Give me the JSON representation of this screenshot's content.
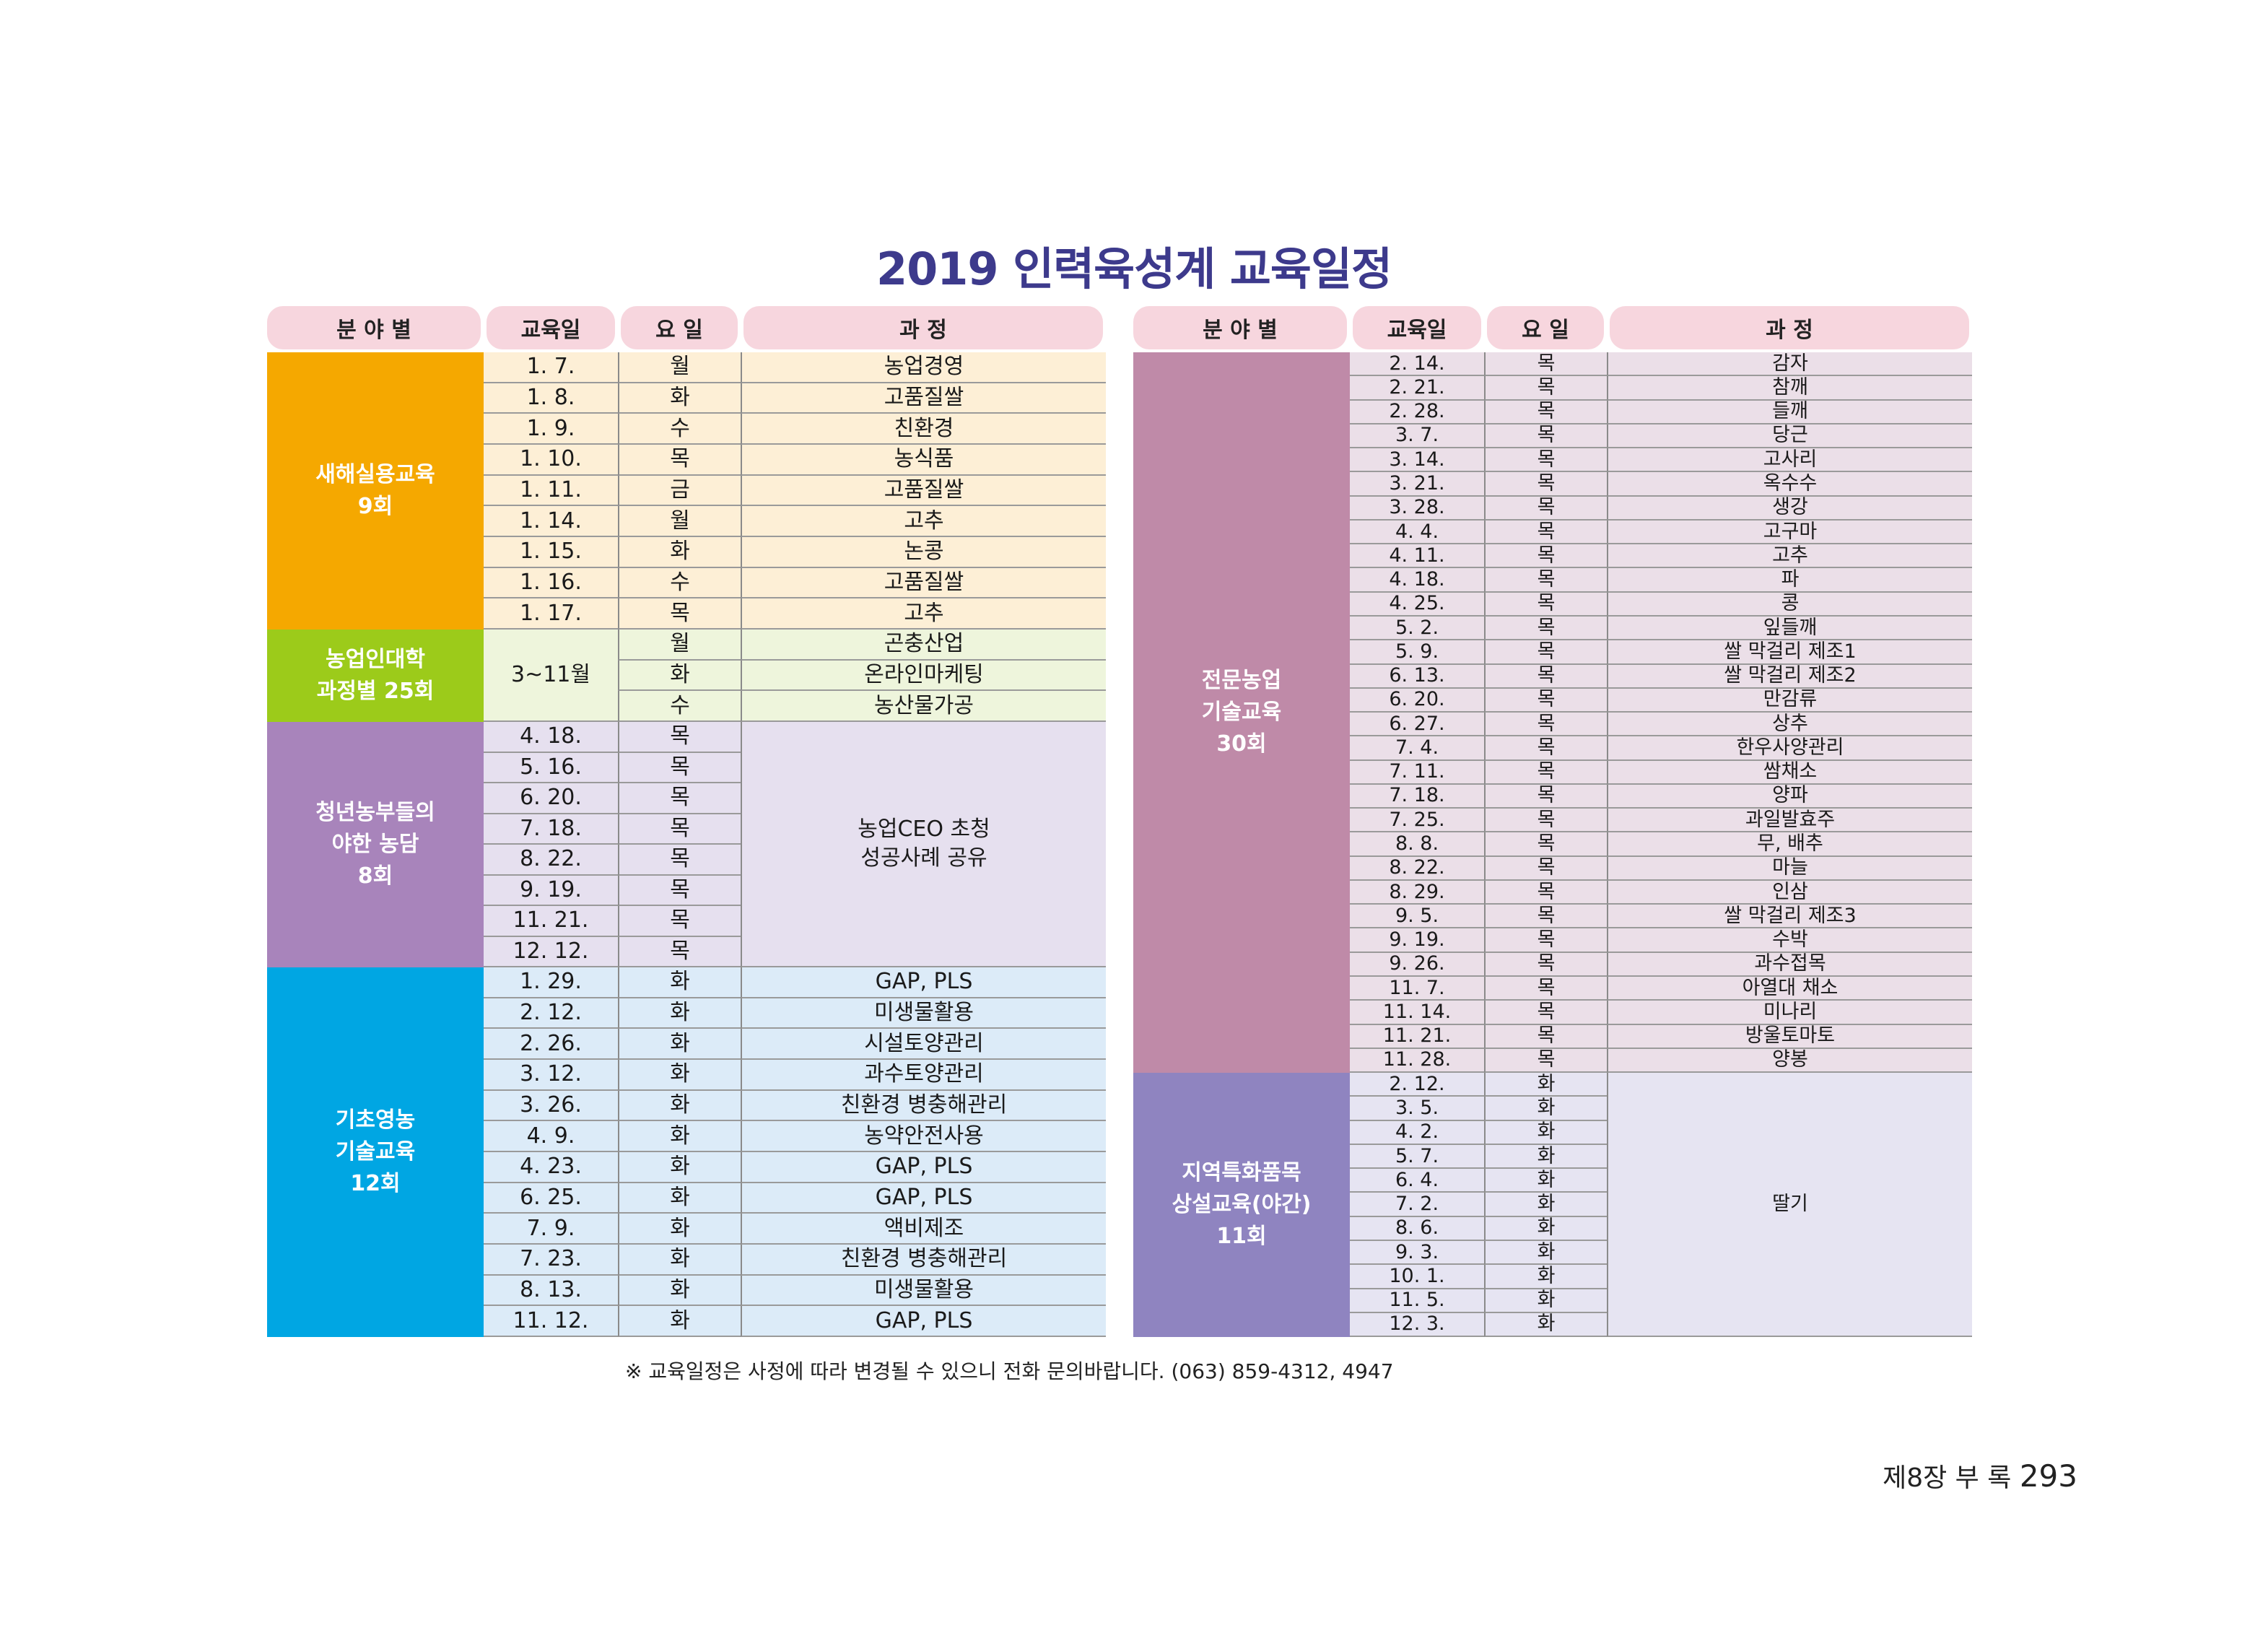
{
  "title": "2019 인력육성계 교육일정",
  "headers": [
    "분 야 별",
    "교육일",
    "요 일",
    "과      정"
  ],
  "colors": {
    "title": "#3d3a8c",
    "header_bg": "#f7d6de",
    "new_year": "#f5a800",
    "new_year_bg": "#fdefd6",
    "farmer_univ": "#9ccb1a",
    "farmer_univ_bg": "#eef5dc",
    "young_farmer": "#a884bb",
    "young_farmer_bg": "#e6e0ef",
    "basic": "#00a6e3",
    "basic_bg": "#dcebf8",
    "specialized": "#bf8aa8",
    "specialized_bg": "#ebdfe8",
    "regional": "#8f84c0",
    "regional_bg": "#e6e4f2"
  },
  "left_table": {
    "groups": [
      {
        "label": "새해실용교육\n9회",
        "rows": [
          {
            "date": "1. 7.",
            "day": "월",
            "course": "농업경영"
          },
          {
            "date": "1. 8.",
            "day": "화",
            "course": "고품질쌀"
          },
          {
            "date": "1. 9.",
            "day": "수",
            "course": "친환경"
          },
          {
            "date": "1. 10.",
            "day": "목",
            "course": "농식품"
          },
          {
            "date": "1. 11.",
            "day": "금",
            "course": "고품질쌀"
          },
          {
            "date": "1. 14.",
            "day": "월",
            "course": "고추"
          },
          {
            "date": "1. 15.",
            "day": "화",
            "course": "논콩"
          },
          {
            "date": "1. 16.",
            "day": "수",
            "course": "고품질쌀"
          },
          {
            "date": "1. 17.",
            "day": "목",
            "course": "고추"
          }
        ]
      },
      {
        "label": "농업인대학\n과정별 25회",
        "date_merged": "3~11월",
        "rows": [
          {
            "day": "월",
            "course": "곤충산업"
          },
          {
            "day": "화",
            "course": "온라인마케팅"
          },
          {
            "day": "수",
            "course": "농산물가공"
          }
        ]
      },
      {
        "label": "청년농부들의\n야한 농담\n8회",
        "course_merged": "농업CEO 초청\n성공사례 공유",
        "rows": [
          {
            "date": "4. 18.",
            "day": "목"
          },
          {
            "date": "5. 16.",
            "day": "목"
          },
          {
            "date": "6. 20.",
            "day": "목"
          },
          {
            "date": "7. 18.",
            "day": "목"
          },
          {
            "date": "8. 22.",
            "day": "목"
          },
          {
            "date": "9. 19.",
            "day": "목"
          },
          {
            "date": "11. 21.",
            "day": "목"
          },
          {
            "date": "12. 12.",
            "day": "목"
          }
        ]
      },
      {
        "label": "기초영농\n기술교육\n12회",
        "rows": [
          {
            "date": "1. 29.",
            "day": "화",
            "course": "GAP, PLS"
          },
          {
            "date": "2. 12.",
            "day": "화",
            "course": "미생물활용"
          },
          {
            "date": "2. 26.",
            "day": "화",
            "course": "시설토양관리"
          },
          {
            "date": "3. 12.",
            "day": "화",
            "course": "과수토양관리"
          },
          {
            "date": "3. 26.",
            "day": "화",
            "course": "친환경 병충해관리"
          },
          {
            "date": "4.  9.",
            "day": "화",
            "course": "농약안전사용"
          },
          {
            "date": "4. 23.",
            "day": "화",
            "course": "GAP, PLS"
          },
          {
            "date": "6. 25.",
            "day": "화",
            "course": "GAP, PLS"
          },
          {
            "date": "7.  9.",
            "day": "화",
            "course": "액비제조"
          },
          {
            "date": "7. 23.",
            "day": "화",
            "course": "친환경 병충해관리"
          },
          {
            "date": "8. 13.",
            "day": "화",
            "course": "미생물활용"
          },
          {
            "date": "11. 12.",
            "day": "화",
            "course": "GAP, PLS"
          }
        ]
      }
    ]
  },
  "right_table": {
    "groups": [
      {
        "label": "전문농업\n기술교육\n30회",
        "rows": [
          {
            "date": "2. 14.",
            "day": "목",
            "course": "감자"
          },
          {
            "date": "2. 21.",
            "day": "목",
            "course": "참깨"
          },
          {
            "date": "2. 28.",
            "day": "목",
            "course": "들깨"
          },
          {
            "date": "3.  7.",
            "day": "목",
            "course": "당근"
          },
          {
            "date": "3. 14.",
            "day": "목",
            "course": "고사리"
          },
          {
            "date": "3. 21.",
            "day": "목",
            "course": "옥수수"
          },
          {
            "date": "3. 28.",
            "day": "목",
            "course": "생강"
          },
          {
            "date": "4.  4.",
            "day": "목",
            "course": "고구마"
          },
          {
            "date": "4. 11.",
            "day": "목",
            "course": "고추"
          },
          {
            "date": "4. 18.",
            "day": "목",
            "course": "파"
          },
          {
            "date": "4. 25.",
            "day": "목",
            "course": "콩"
          },
          {
            "date": "5.  2.",
            "day": "목",
            "course": "잎들깨"
          },
          {
            "date": "5.  9.",
            "day": "목",
            "course": "쌀 막걸리 제조1"
          },
          {
            "date": "6. 13.",
            "day": "목",
            "course": "쌀 막걸리 제조2"
          },
          {
            "date": "6. 20.",
            "day": "목",
            "course": "만감류"
          },
          {
            "date": "6. 27.",
            "day": "목",
            "course": "상추"
          },
          {
            "date": "7.  4.",
            "day": "목",
            "course": "한우사양관리"
          },
          {
            "date": "7. 11.",
            "day": "목",
            "course": "쌈채소"
          },
          {
            "date": "7. 18.",
            "day": "목",
            "course": "양파"
          },
          {
            "date": "7. 25.",
            "day": "목",
            "course": "과일발효주"
          },
          {
            "date": "8.  8.",
            "day": "목",
            "course": "무, 배추"
          },
          {
            "date": "8. 22.",
            "day": "목",
            "course": "마늘"
          },
          {
            "date": "8. 29.",
            "day": "목",
            "course": "인삼"
          },
          {
            "date": "9.  5.",
            "day": "목",
            "course": "쌀 막걸리 제조3"
          },
          {
            "date": "9. 19.",
            "day": "목",
            "course": "수박"
          },
          {
            "date": "9. 26.",
            "day": "목",
            "course": "과수접목"
          },
          {
            "date": "11.  7.",
            "day": "목",
            "course": "아열대 채소"
          },
          {
            "date": "11. 14.",
            "day": "목",
            "course": "미나리"
          },
          {
            "date": "11. 21.",
            "day": "목",
            "course": "방울토마토"
          },
          {
            "date": "11. 28.",
            "day": "목",
            "course": "양봉"
          }
        ]
      },
      {
        "label": "지역특화품목\n상설교육(야간)\n11회",
        "course_merged": "딸기",
        "rows": [
          {
            "date": "2. 12.",
            "day": "화"
          },
          {
            "date": "3.  5.",
            "day": "화"
          },
          {
            "date": "4.  2.",
            "day": "화"
          },
          {
            "date": "5.  7.",
            "day": "화"
          },
          {
            "date": "6.  4.",
            "day": "화"
          },
          {
            "date": "7.  2.",
            "day": "화"
          },
          {
            "date": "8.  6.",
            "day": "화"
          },
          {
            "date": "9.  3.",
            "day": "화"
          },
          {
            "date": "10.  1.",
            "day": "화"
          },
          {
            "date": "11.  5.",
            "day": "화"
          },
          {
            "date": "12.  3.",
            "day": "화"
          }
        ]
      }
    ]
  },
  "footnote": "※ 교육일정은 사정에 따라 변경될 수 있으니 전화 문의바랍니다. (063) 859-4312, 4947",
  "page_footer": {
    "section": "제8장  부 록",
    "page_number": "293"
  }
}
